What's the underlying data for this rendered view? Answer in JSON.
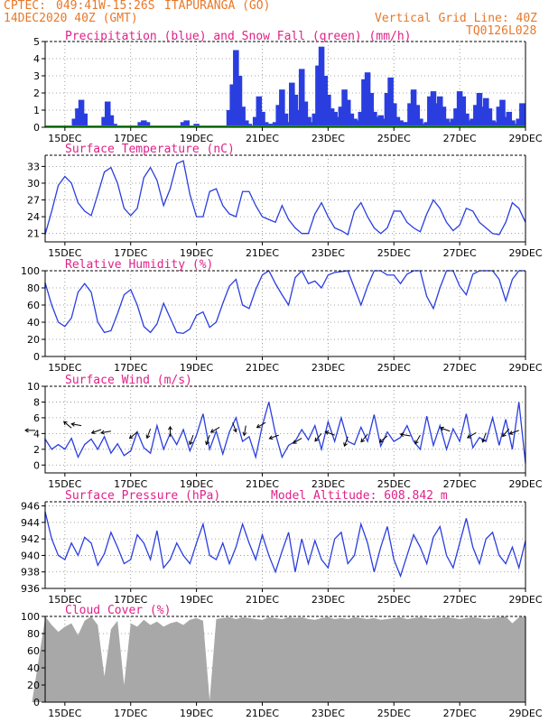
{
  "header": {
    "source": "CPTEC:",
    "coords": "049:41W-15:26S",
    "location": "ITAPURANGA (GO)",
    "date": "14DEC2020 40Z (GMT)",
    "grid_note": "Vertical Grid Line: 40Z",
    "code": "TQ0126L028"
  },
  "colors": {
    "header": "#e8782a",
    "title": "#e0208a",
    "line": "#2a3ee0",
    "snow": "#20a020",
    "cloud": "#a8a8a8"
  },
  "x_labels": [
    "15DEC",
    "17DEC",
    "19DEC",
    "21DEC",
    "23DEC",
    "25DEC",
    "27DEC",
    "29DEC"
  ],
  "chart_data": [
    {
      "id": "precip",
      "type": "bar",
      "title": "Precipitation (blue) and Snow Fall (green) (mm/h)",
      "ylim": [
        0,
        5
      ],
      "yticks": [
        0,
        1,
        2,
        3,
        4,
        5
      ],
      "series": [
        {
          "name": "Precipitation",
          "color": "#2a3ee0",
          "x": [
            1.3,
            1.4,
            1.5,
            1.6,
            2.2,
            2.3,
            2.4,
            2.5,
            3.3,
            3.4,
            3.5,
            4.6,
            4.7,
            5.0,
            5.1,
            6.0,
            6.1,
            6.2,
            6.3,
            6.4,
            6.5,
            6.6,
            6.7,
            6.8,
            6.9,
            7.0,
            7.1,
            7.2,
            7.3,
            7.4,
            7.5,
            7.6,
            7.7,
            7.8,
            7.9,
            8.0,
            8.1,
            8.2,
            8.3,
            8.4,
            8.5,
            8.6,
            8.7,
            8.8,
            8.9,
            9.0,
            9.1,
            9.2,
            9.3,
            9.4,
            9.5,
            9.6,
            9.7,
            9.8,
            9.9,
            10.0,
            10.1,
            10.2,
            10.3,
            10.4,
            10.5,
            10.6,
            10.7,
            10.8,
            10.9,
            11.0,
            11.1,
            11.2,
            11.3,
            11.4,
            11.5,
            11.6,
            11.7,
            11.8,
            11.9,
            12.0,
            12.1,
            12.2,
            12.3,
            12.4,
            12.5,
            12.6,
            12.7,
            12.8,
            12.9,
            13.0,
            13.1,
            13.2,
            13.3,
            13.4,
            13.5,
            13.6,
            13.7,
            13.8,
            13.9,
            14.0,
            14.1,
            14.2,
            14.3,
            14.4,
            14.5,
            14.6,
            14.7,
            14.8,
            14.9
          ],
          "values": [
            0.5,
            1.1,
            1.6,
            0.8,
            0.6,
            1.5,
            0.7,
            0.2,
            0.3,
            0.4,
            0.3,
            0.3,
            0.4,
            0.2,
            0.1,
            1.0,
            2.5,
            4.5,
            3.0,
            1.2,
            0.4,
            0.2,
            0.1,
            0.6,
            1.8,
            0.9,
            0.3,
            0.2,
            0.2,
            0.3,
            1.3,
            2.2,
            0.8,
            0.3,
            2.6,
            1.9,
            1.0,
            3.4,
            1.5,
            0.6,
            0.3,
            0.8,
            3.6,
            4.7,
            3.0,
            1.9,
            1.1,
            0.9,
            0.6,
            1.2,
            2.2,
            1.6,
            0.8,
            0.5,
            0.4,
            0.9,
            2.8,
            3.2,
            2.0,
            0.9,
            0.6,
            0.7,
            0.5,
            2.0,
            2.9,
            1.4,
            0.6,
            0.4,
            0.3,
            0.3,
            1.4,
            2.2,
            1.3,
            0.5,
            0.2,
            0.3,
            1.8,
            2.1,
            1.4,
            1.8,
            1.2,
            0.5,
            0.3,
            0.5,
            1.1,
            2.1,
            1.8,
            0.8,
            0.4,
            0.5,
            1.3,
            2.0,
            1.2,
            1.7,
            1.1,
            0.4,
            0.3,
            1.2,
            1.6,
            0.6,
            0.9,
            0.4,
            0.2,
            0.5,
            1.4
          ]
        },
        {
          "name": "Snow Fall",
          "color": "#20a020",
          "values": [
            0
          ]
        }
      ],
      "x_labels": [
        "15DEC",
        "17DEC",
        "19DEC",
        "21DEC",
        "23DEC",
        "25DEC",
        "27DEC",
        "29DEC"
      ]
    },
    {
      "id": "temp",
      "type": "line",
      "title": "Surface Temperature (nC)",
      "ylim": [
        19.5,
        35
      ],
      "yticks": [
        21,
        24,
        27,
        30,
        33
      ],
      "x": [
        0.0,
        0.2,
        0.4,
        0.6,
        0.8,
        1.0,
        1.2,
        1.4,
        1.6,
        1.8,
        2.0,
        2.2,
        2.4,
        2.6,
        2.8,
        3.0,
        3.2,
        3.4,
        3.6,
        3.8,
        4.0,
        4.2,
        4.4,
        4.6,
        4.8,
        5.0,
        5.2,
        5.4,
        5.6,
        5.8,
        6.0,
        6.2,
        6.4,
        6.6,
        6.8,
        7.0,
        7.2,
        7.4,
        7.6,
        7.8,
        8.0,
        8.2,
        8.4,
        8.6,
        8.8,
        9.0,
        9.2,
        9.4,
        9.6,
        9.8,
        10.0,
        10.2,
        10.4,
        10.6,
        10.8,
        11.0,
        11.2,
        11.4,
        11.6,
        11.8,
        12.0,
        12.2,
        12.4,
        12.6,
        12.8,
        13.0,
        13.2,
        13.4,
        13.6,
        13.8,
        14.0,
        14.2,
        14.4,
        14.6,
        14.8,
        15.0
      ],
      "y": [
        22.0,
        21.5,
        20.8,
        25.0,
        29.6,
        31.2,
        30.0,
        26.5,
        25.0,
        24.2,
        28.0,
        32.0,
        32.8,
        30.0,
        25.5,
        24.2,
        25.5,
        31.0,
        32.8,
        30.5,
        26.0,
        29.0,
        33.5,
        34.0,
        28.0,
        24.0,
        24.0,
        28.5,
        29.0,
        26.0,
        24.5,
        24.0,
        28.5,
        28.5,
        26.0,
        24.0,
        23.5,
        23.0,
        26.0,
        23.5,
        22.0,
        21.0,
        21.0,
        24.5,
        26.5,
        24.0,
        22.0,
        21.5,
        20.8,
        25.0,
        26.5,
        24.0,
        22.0,
        21.0,
        22.0,
        25.0,
        25.0,
        23.0,
        22.0,
        21.3,
        24.5,
        27.0,
        25.5,
        23.0,
        21.5,
        22.5,
        25.5,
        25.0,
        23.0,
        22.0,
        21.0,
        20.8,
        23.0,
        26.5,
        25.5,
        23.0
      ],
      "x_labels": [
        "15DEC",
        "17DEC",
        "19DEC",
        "21DEC",
        "23DEC",
        "25DEC",
        "27DEC",
        "29DEC"
      ]
    },
    {
      "id": "rh",
      "type": "line",
      "title": "Relative Humidity (%)",
      "ylim": [
        0,
        100
      ],
      "yticks": [
        0,
        20,
        40,
        60,
        80,
        100
      ],
      "x": [
        0.0,
        0.2,
        0.4,
        0.6,
        0.8,
        1.0,
        1.2,
        1.4,
        1.6,
        1.8,
        2.0,
        2.2,
        2.4,
        2.6,
        2.8,
        3.0,
        3.2,
        3.4,
        3.6,
        3.8,
        4.0,
        4.2,
        4.4,
        4.6,
        4.8,
        5.0,
        5.2,
        5.4,
        5.6,
        5.8,
        6.0,
        6.2,
        6.4,
        6.6,
        6.8,
        7.0,
        7.2,
        7.4,
        7.6,
        7.8,
        8.0,
        8.2,
        8.4,
        8.6,
        8.8,
        9.0,
        9.2,
        9.4,
        9.6,
        9.8,
        10.0,
        10.2,
        10.4,
        10.6,
        10.8,
        11.0,
        11.2,
        11.4,
        11.6,
        11.8,
        12.0,
        12.2,
        12.4,
        12.6,
        12.8,
        13.0,
        13.2,
        13.4,
        13.6,
        13.8,
        14.0,
        14.2,
        14.4,
        14.6,
        14.8,
        15.0
      ],
      "y": [
        80,
        85,
        86,
        60,
        40,
        35,
        45,
        75,
        85,
        75,
        40,
        28,
        30,
        50,
        72,
        78,
        60,
        35,
        28,
        38,
        62,
        45,
        28,
        27,
        32,
        48,
        52,
        34,
        40,
        62,
        82,
        90,
        60,
        56,
        78,
        95,
        100,
        85,
        72,
        60,
        92,
        100,
        85,
        88,
        80,
        95,
        98,
        99,
        100,
        80,
        60,
        82,
        100,
        100,
        95,
        95,
        85,
        96,
        100,
        100,
        70,
        56,
        80,
        100,
        100,
        82,
        72,
        96,
        100,
        100,
        100,
        90,
        65,
        90,
        100,
        100
      ],
      "x_labels": [
        "15DEC",
        "17DEC",
        "19DEC",
        "21DEC",
        "23DEC",
        "25DEC",
        "27DEC",
        "29DEC"
      ]
    },
    {
      "id": "wind",
      "type": "line",
      "title": "Surface Wind (m/s)",
      "ylim": [
        -1,
        10
      ],
      "yticks": [
        0,
        2,
        4,
        6,
        8,
        10
      ],
      "x": [
        0.0,
        0.2,
        0.4,
        0.6,
        0.8,
        1.0,
        1.2,
        1.4,
        1.6,
        1.8,
        2.0,
        2.2,
        2.4,
        2.6,
        2.8,
        3.0,
        3.2,
        3.4,
        3.6,
        3.8,
        4.0,
        4.2,
        4.4,
        4.6,
        4.8,
        5.0,
        5.2,
        5.4,
        5.6,
        5.8,
        6.0,
        6.2,
        6.4,
        6.6,
        6.8,
        7.0,
        7.2,
        7.4,
        7.6,
        7.8,
        8.0,
        8.2,
        8.4,
        8.6,
        8.8,
        9.0,
        9.2,
        9.4,
        9.6,
        9.8,
        10.0,
        10.2,
        10.4,
        10.6,
        10.8,
        11.0,
        11.2,
        11.4,
        11.6,
        11.8,
        12.0,
        12.2,
        12.4,
        12.6,
        12.8,
        13.0,
        13.2,
        13.4,
        13.6,
        13.8,
        14.0,
        14.2,
        14.4,
        14.6,
        14.8,
        15.0
      ],
      "y": [
        2.2,
        2.8,
        3.3,
        2.0,
        2.6,
        2.0,
        3.4,
        1.0,
        2.6,
        3.3,
        2.0,
        3.6,
        1.5,
        2.7,
        1.2,
        1.8,
        4.2,
        2.2,
        1.5,
        5.0,
        2.0,
        4.0,
        2.6,
        4.5,
        1.8,
        3.8,
        6.5,
        2.0,
        4.3,
        1.4,
        4.2,
        6.0,
        3.0,
        3.6,
        1.0,
        5.0,
        8.0,
        4.0,
        1.0,
        2.5,
        3.0,
        4.5,
        3.2,
        5.0,
        2.0,
        5.5,
        3.0,
        6.0,
        3.0,
        2.6,
        4.8,
        3.0,
        6.4,
        2.4,
        4.2,
        3.0,
        3.5,
        5.0,
        3.0,
        2.0,
        6.2,
        2.5,
        5.0,
        2.0,
        4.6,
        3.0,
        6.5,
        2.2,
        3.5,
        3.0,
        6.0,
        2.5,
        5.8,
        2.0,
        8.0,
        0.2
      ],
      "barbs": [
        {
          "x": 0.1,
          "y": 4.4,
          "dir": 180
        },
        {
          "x": 1.2,
          "y": 4.7,
          "dir": 140
        },
        {
          "x": 1.5,
          "y": 5.0,
          "dir": 170
        },
        {
          "x": 2.1,
          "y": 4.5,
          "dir": 200
        },
        {
          "x": 2.4,
          "y": 4.3,
          "dir": 190
        },
        {
          "x": 3.2,
          "y": 4.2,
          "dir": 220
        },
        {
          "x": 3.6,
          "y": 4.6,
          "dir": 250
        },
        {
          "x": 4.2,
          "y": 3.6,
          "dir": 90
        },
        {
          "x": 4.9,
          "y": 3.8,
          "dir": 250
        },
        {
          "x": 5.4,
          "y": 3.8,
          "dir": 250
        },
        {
          "x": 5.7,
          "y": 4.8,
          "dir": 210
        },
        {
          "x": 6.1,
          "y": 5.4,
          "dir": 290
        },
        {
          "x": 6.5,
          "y": 5.0,
          "dir": 260
        },
        {
          "x": 7.1,
          "y": 5.4,
          "dir": 210
        },
        {
          "x": 7.5,
          "y": 3.8,
          "dir": 200
        },
        {
          "x": 8.2,
          "y": 3.4,
          "dir": 210
        },
        {
          "x": 8.8,
          "y": 4.0,
          "dir": 230
        },
        {
          "x": 9.2,
          "y": 3.8,
          "dir": 160
        },
        {
          "x": 9.6,
          "y": 3.6,
          "dir": 250
        },
        {
          "x": 10.2,
          "y": 3.9,
          "dir": 230
        },
        {
          "x": 10.8,
          "y": 3.7,
          "dir": 220
        },
        {
          "x": 11.5,
          "y": 3.7,
          "dir": 170
        },
        {
          "x": 11.8,
          "y": 3.8,
          "dir": 240
        },
        {
          "x": 12.7,
          "y": 4.3,
          "dir": 160
        },
        {
          "x": 13.5,
          "y": 4.1,
          "dir": 210
        },
        {
          "x": 13.8,
          "y": 4.1,
          "dir": 250
        },
        {
          "x": 14.5,
          "y": 4.6,
          "dir": 230
        },
        {
          "x": 14.8,
          "y": 4.4,
          "dir": 200
        }
      ],
      "x_labels": [
        "15DEC",
        "17DEC",
        "19DEC",
        "21DEC",
        "23DEC",
        "25DEC",
        "27DEC",
        "29DEC"
      ]
    },
    {
      "id": "press",
      "type": "line",
      "title": "Surface Pressure (hPa)",
      "annotation": "Model Altitude: 608.842 m",
      "ylim": [
        936,
        946.5
      ],
      "yticks": [
        936,
        938,
        940,
        942,
        944,
        946
      ],
      "x": [
        0.0,
        0.2,
        0.4,
        0.6,
        0.8,
        1.0,
        1.2,
        1.4,
        1.6,
        1.8,
        2.0,
        2.2,
        2.4,
        2.6,
        2.8,
        3.0,
        3.2,
        3.4,
        3.6,
        3.8,
        4.0,
        4.2,
        4.4,
        4.6,
        4.8,
        5.0,
        5.2,
        5.4,
        5.6,
        5.8,
        6.0,
        6.2,
        6.4,
        6.6,
        6.8,
        7.0,
        7.2,
        7.4,
        7.6,
        7.8,
        8.0,
        8.2,
        8.4,
        8.6,
        8.8,
        9.0,
        9.2,
        9.4,
        9.6,
        9.8,
        10.0,
        10.2,
        10.4,
        10.6,
        10.8,
        11.0,
        11.2,
        11.4,
        11.6,
        11.8,
        12.0,
        12.2,
        12.4,
        12.6,
        12.8,
        13.0,
        13.2,
        13.4,
        13.6,
        13.8,
        14.0,
        14.2,
        14.4,
        14.6,
        14.8,
        15.0
      ],
      "y": [
        944.0,
        945.0,
        945.3,
        942.0,
        940.0,
        939.5,
        941.5,
        940.0,
        942.2,
        941.5,
        938.8,
        940.2,
        942.8,
        941.0,
        939.0,
        939.5,
        942.5,
        941.5,
        939.5,
        943.0,
        938.5,
        939.5,
        941.5,
        940.0,
        939.0,
        941.5,
        943.8,
        940.0,
        939.5,
        941.5,
        939.0,
        941.0,
        943.8,
        941.5,
        939.5,
        942.5,
        940.0,
        938.0,
        940.5,
        942.8,
        938.0,
        942.0,
        939.0,
        941.8,
        939.5,
        938.5,
        942.0,
        942.8,
        939.0,
        940.0,
        943.8,
        941.5,
        938.0,
        941.0,
        943.5,
        939.5,
        937.5,
        940.0,
        942.5,
        941.0,
        939.0,
        942.2,
        943.5,
        940.0,
        938.5,
        941.5,
        944.5,
        941.0,
        939.0,
        942.0,
        942.8,
        940.0,
        939.0,
        941.0,
        938.5,
        941.8
      ],
      "x_labels": [
        "15DEC",
        "17DEC",
        "19DEC",
        "21DEC",
        "23DEC",
        "25DEC",
        "27DEC",
        "29DEC"
      ]
    },
    {
      "id": "cloud",
      "type": "area",
      "title": "Cloud Cover (%)",
      "ylim": [
        0,
        100
      ],
      "yticks": [
        0,
        20,
        40,
        60,
        80,
        100
      ],
      "x": [
        0.0,
        0.2,
        0.4,
        0.6,
        0.8,
        1.0,
        1.2,
        1.4,
        1.6,
        1.8,
        2.0,
        2.2,
        2.4,
        2.6,
        2.8,
        3.0,
        3.2,
        3.4,
        3.6,
        3.8,
        4.0,
        4.2,
        4.4,
        4.6,
        4.8,
        5.0,
        5.2,
        5.4,
        5.6,
        5.8,
        6.0,
        6.2,
        6.4,
        6.6,
        6.8,
        7.0,
        7.2,
        7.4,
        7.6,
        7.8,
        8.0,
        8.2,
        8.4,
        8.6,
        8.8,
        9.0,
        9.2,
        9.4,
        9.6,
        9.8,
        10.0,
        10.2,
        10.4,
        10.6,
        10.8,
        11.0,
        11.2,
        11.4,
        11.6,
        11.8,
        12.0,
        12.2,
        12.4,
        12.6,
        12.8,
        13.0,
        13.2,
        13.4,
        13.6,
        13.8,
        14.0,
        14.2,
        14.4,
        14.6,
        14.8,
        15.0
      ],
      "y": [
        98,
        96,
        100,
        90,
        82,
        88,
        92,
        78,
        95,
        100,
        90,
        30,
        85,
        95,
        20,
        92,
        88,
        96,
        90,
        94,
        88,
        92,
        94,
        90,
        96,
        98,
        95,
        2,
        97,
        98,
        99,
        97,
        99,
        98,
        97,
        96,
        99,
        98,
        97,
        99,
        98,
        99,
        97,
        96,
        98,
        99,
        97,
        98,
        97,
        99,
        98,
        97,
        98,
        96,
        97,
        98,
        99,
        97,
        98,
        99,
        98,
        97,
        98,
        99,
        98,
        97,
        98,
        99,
        98,
        97,
        98,
        99,
        100,
        92,
        99,
        100
      ],
      "x_labels": [
        "15DEC",
        "17DEC",
        "19DEC",
        "21DEC",
        "23DEC",
        "25DEC",
        "27DEC",
        "29DEC"
      ]
    }
  ]
}
